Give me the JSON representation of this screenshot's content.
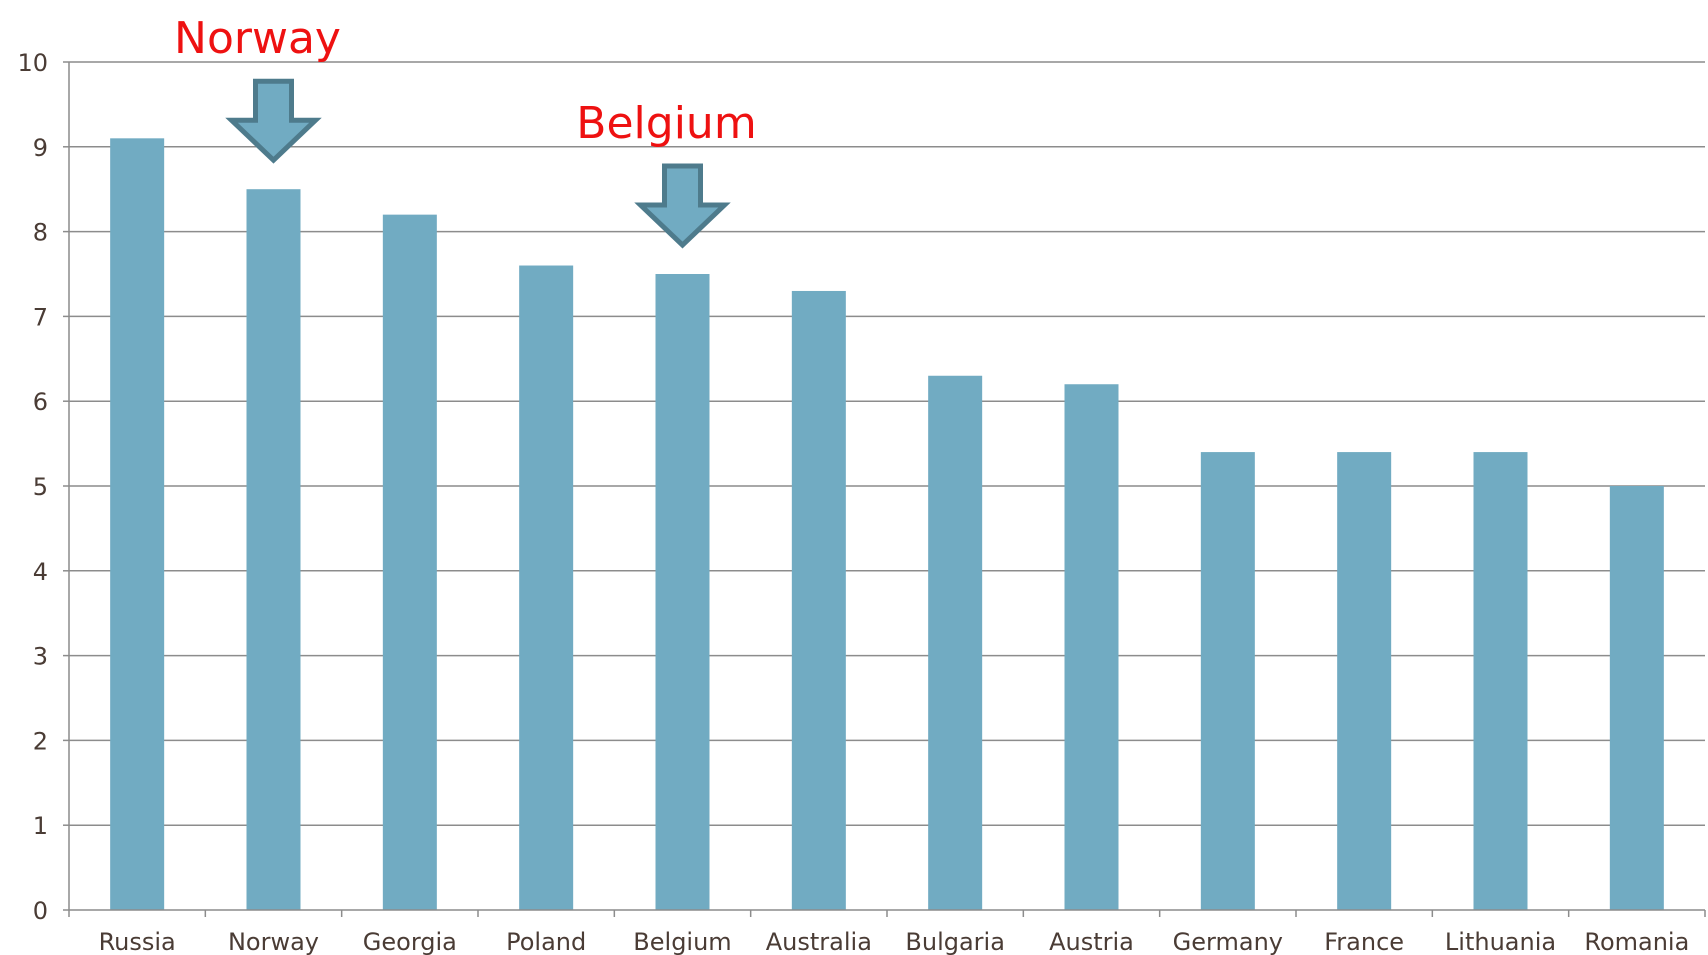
{
  "chart_data": {
    "type": "bar",
    "categories": [
      "Russia",
      "Norway",
      "Georgia",
      "Poland",
      "Belgium",
      "Australia",
      "Bulgaria",
      "Austria",
      "Germany",
      "France",
      "Lithuania",
      "Romania"
    ],
    "values": [
      9.1,
      8.5,
      8.2,
      7.6,
      7.5,
      7.3,
      6.3,
      6.2,
      5.4,
      5.4,
      5.4,
      5.0
    ],
    "title": "",
    "xlabel": "",
    "ylabel": "",
    "ylim": [
      0,
      10
    ],
    "yticks": [
      0,
      1,
      2,
      3,
      4,
      5,
      6,
      7,
      8,
      9,
      10
    ],
    "grid": true,
    "bar_color": "#71abc2",
    "annotations": [
      {
        "text": "Norway",
        "category": "Norway",
        "color": "#ee1111"
      },
      {
        "text": "Belgium",
        "category": "Belgium",
        "color": "#ee1111"
      }
    ],
    "arrow_color": "#71abc2",
    "arrow_stroke": "#4e7b8c"
  }
}
